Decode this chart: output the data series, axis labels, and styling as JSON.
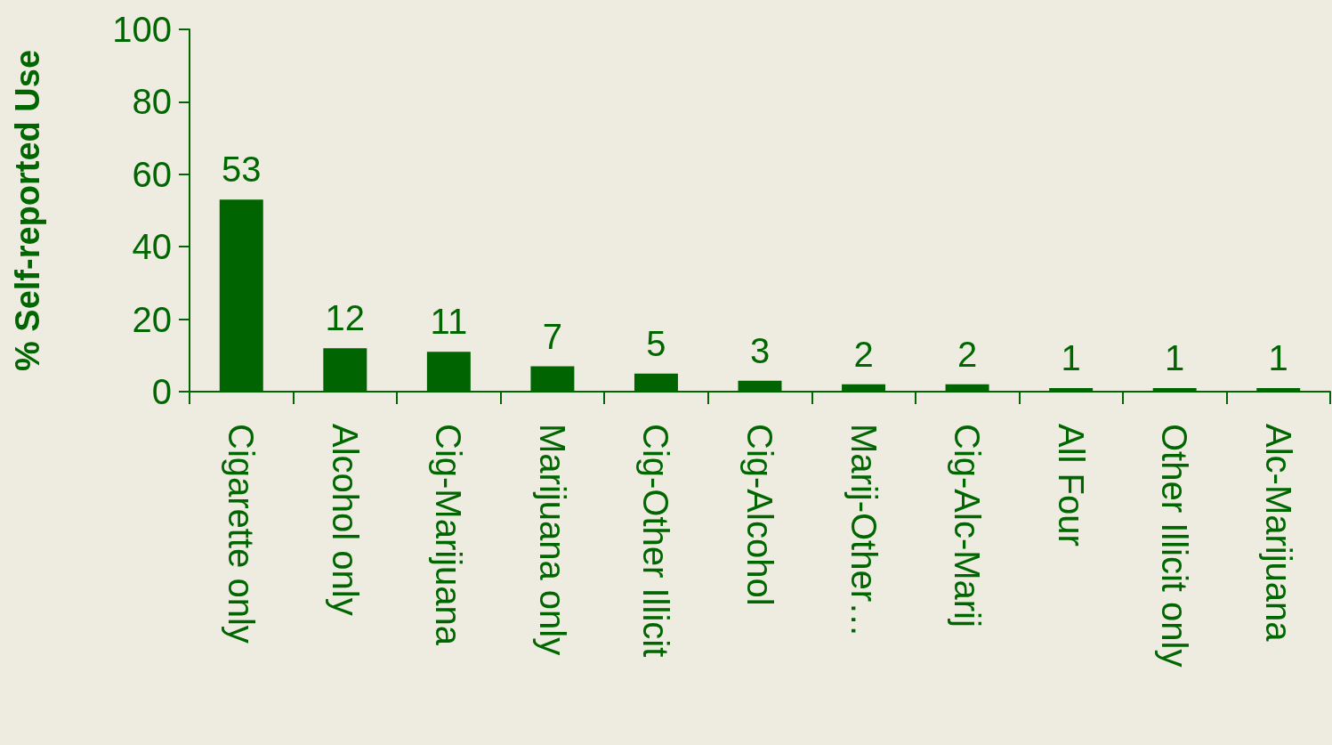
{
  "chart_data": {
    "type": "bar",
    "ylabel": "% Self-reported Use",
    "categories": [
      "Cigarette only",
      "Alcohol only",
      "Cig-Marijuana",
      "Marijuana only",
      "Cig-Other Illicit",
      "Cig-Alcohol",
      "Marij-Other…",
      "Cig-Alc-Marij",
      "All Four",
      "Other Illicit only",
      "Alc-Marijuana"
    ],
    "values": [
      53,
      12,
      11,
      7,
      5,
      3,
      2,
      2,
      1,
      1,
      1
    ],
    "color": "#006400",
    "ylim": [
      0,
      100
    ],
    "yticks": [
      0,
      20,
      40,
      60,
      80,
      100
    ],
    "data_labels": true,
    "grid": false
  }
}
